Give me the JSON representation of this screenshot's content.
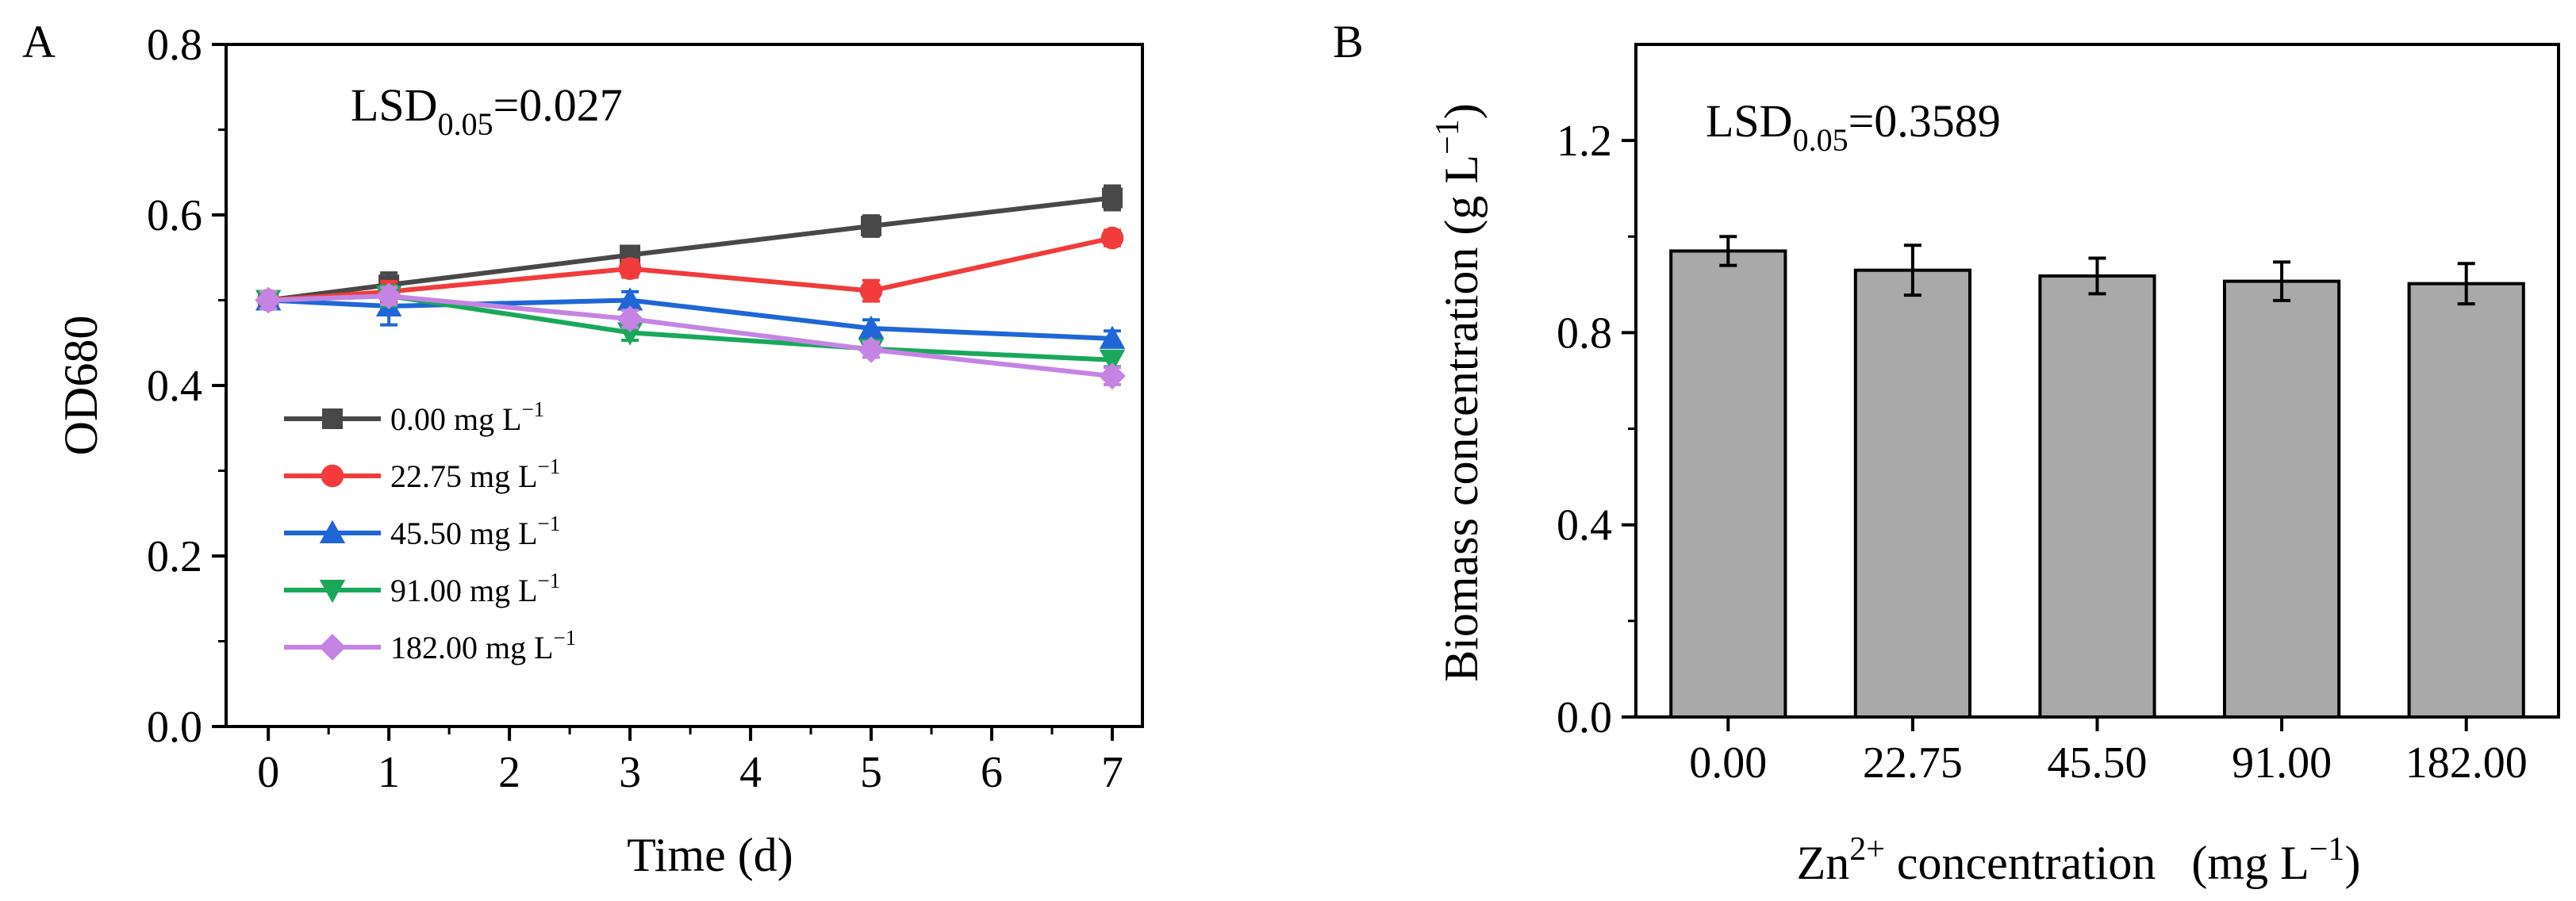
{
  "chart_data": [
    {
      "panel": "A",
      "type": "line",
      "title": "",
      "annotation": {
        "main": "LSD",
        "sub": "0.05",
        "value": "=0.027"
      },
      "xlabel": "Time (d)",
      "ylabel": "OD680",
      "xlim": [
        -0.35,
        7.25
      ],
      "ylim": [
        0.0,
        0.8
      ],
      "x_ticks": [
        0,
        1,
        2,
        3,
        4,
        5,
        6,
        7
      ],
      "x_tick_labels": [
        "0",
        "1",
        "2",
        "3",
        "4",
        "5",
        "6",
        "7"
      ],
      "y_ticks": [
        0.0,
        0.2,
        0.4,
        0.6,
        0.8
      ],
      "y_tick_labels": [
        "0.0",
        "0.2",
        "0.4",
        "0.6",
        "0.8"
      ],
      "x": [
        0,
        1,
        3,
        5,
        7
      ],
      "legend_position": "left-middle",
      "series": [
        {
          "name": "0.00 mg L",
          "sup": "−1",
          "color": "#484848",
          "marker": "square",
          "values": [
            0.5,
            0.518,
            0.553,
            0.587,
            0.62
          ],
          "errors": [
            0.01,
            0.014,
            0.01,
            0.012,
            0.014
          ]
        },
        {
          "name": "22.75 mg L",
          "sup": "−1",
          "color": "#f23b3b",
          "marker": "circle",
          "values": [
            0.5,
            0.51,
            0.537,
            0.511,
            0.573
          ],
          "errors": [
            0.01,
            0.012,
            0.01,
            0.012,
            0.009
          ]
        },
        {
          "name": "45.50 mg L",
          "sup": "−1",
          "color": "#1f66d6",
          "marker": "triangle-up",
          "values": [
            0.5,
            0.493,
            0.5,
            0.467,
            0.455
          ],
          "errors": [
            0.01,
            0.022,
            0.01,
            0.01,
            0.009
          ]
        },
        {
          "name": "91.00 mg L",
          "sup": "−1",
          "color": "#19a85a",
          "marker": "triangle-down",
          "values": [
            0.5,
            0.505,
            0.462,
            0.443,
            0.43
          ],
          "errors": [
            0.01,
            0.012,
            0.009,
            0.01,
            0.008
          ]
        },
        {
          "name": "182.00 mg L",
          "sup": "−1",
          "color": "#c584e3",
          "marker": "diamond",
          "values": [
            0.5,
            0.505,
            0.478,
            0.442,
            0.411
          ],
          "errors": [
            0.01,
            0.01,
            0.01,
            0.009,
            0.01
          ]
        }
      ]
    },
    {
      "panel": "B",
      "type": "bar",
      "title": "",
      "annotation": {
        "main": "LSD",
        "sub": "0.05",
        "value": "=0.3589"
      },
      "xlabel_pre": "Zn",
      "xlabel_sup": "2+",
      "xlabel_post": " concentration   (mg L",
      "xlabel_sup2": "−1",
      "xlabel_end": ")",
      "ylabel_main": "Biomass concentration (g L",
      "ylabel_sup": "−1",
      "ylabel_end": ")",
      "ylim": [
        0.0,
        1.4
      ],
      "y_ticks": [
        0.0,
        0.4,
        0.8,
        1.2
      ],
      "y_tick_labels": [
        "0.0",
        "0.4",
        "0.8",
        "1.2"
      ],
      "categories": [
        "0.00",
        "22.75",
        "45.50",
        "91.00",
        "182.00"
      ],
      "values": [
        0.97,
        0.93,
        0.918,
        0.907,
        0.902
      ],
      "errors": [
        0.03,
        0.052,
        0.037,
        0.04,
        0.042
      ],
      "bar_color": "#a9a9a9"
    }
  ]
}
